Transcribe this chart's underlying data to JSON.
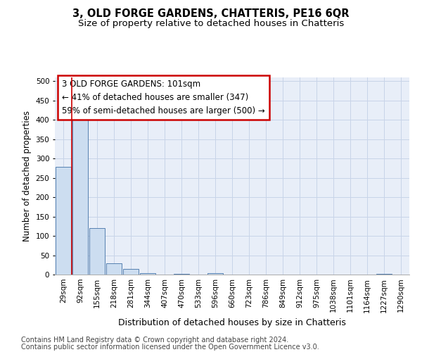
{
  "title": "3, OLD FORGE GARDENS, CHATTERIS, PE16 6QR",
  "subtitle": "Size of property relative to detached houses in Chatteris",
  "xlabel": "Distribution of detached houses by size in Chatteris",
  "ylabel": "Number of detached properties",
  "categories": [
    "29sqm",
    "92sqm",
    "155sqm",
    "218sqm",
    "281sqm",
    "344sqm",
    "407sqm",
    "470sqm",
    "533sqm",
    "596sqm",
    "660sqm",
    "723sqm",
    "786sqm",
    "849sqm",
    "912sqm",
    "975sqm",
    "1038sqm",
    "1101sqm",
    "1164sqm",
    "1227sqm",
    "1290sqm"
  ],
  "values": [
    278,
    410,
    121,
    30,
    15,
    4,
    0,
    1,
    0,
    3,
    0,
    0,
    0,
    0,
    0,
    0,
    0,
    0,
    0,
    2,
    0
  ],
  "bar_color": "#ccddf0",
  "bar_edge_color": "#5580b0",
  "grid_color": "#c8d4e8",
  "bg_color": "#e8eef8",
  "annotation_text": "3 OLD FORGE GARDENS: 101sqm\n← 41% of detached houses are smaller (347)\n59% of semi-detached houses are larger (500) →",
  "annotation_box_color": "#cc0000",
  "vline_color": "#cc0000",
  "vline_x": 0.5,
  "ylim": [
    0,
    510
  ],
  "yticks": [
    0,
    50,
    100,
    150,
    200,
    250,
    300,
    350,
    400,
    450,
    500
  ],
  "footer_line1": "Contains HM Land Registry data © Crown copyright and database right 2024.",
  "footer_line2": "Contains public sector information licensed under the Open Government Licence v3.0.",
  "title_fontsize": 10.5,
  "subtitle_fontsize": 9.5,
  "xlabel_fontsize": 9,
  "ylabel_fontsize": 8.5,
  "tick_fontsize": 7.5,
  "annotation_fontsize": 8.5,
  "footer_fontsize": 7
}
